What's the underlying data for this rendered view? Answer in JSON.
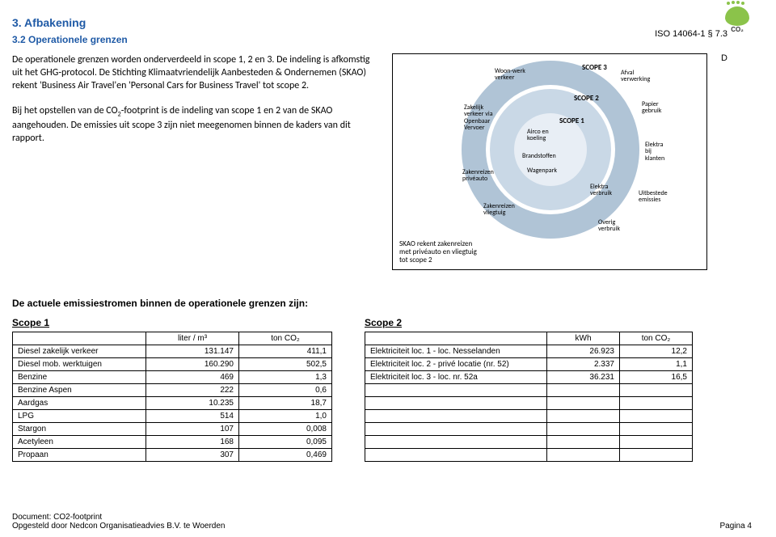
{
  "logo_text": "CO₂",
  "heading": "3. Afbakening",
  "subheading": "3.2 Operationele grenzen",
  "iso_ref": "ISO 14064-1 § 7.3",
  "d_mark": "D",
  "para1": "De operationele grenzen worden onderverdeeld in scope 1, 2 en 3. De indeling is afkomstig uit het GHG-protocol. De Stichting Klimaatvriendelijk Aanbesteden & Ondernemen (SKAO) rekent 'Business Air Travel'en 'Personal Cars for Business Travel' tot scope 2.",
  "para2_a": "Bij het opstellen van de CO",
  "para2_b": "-footprint is de indeling van scope 1 en 2 van de SKAO aangehouden. De emissies uit scope 3 zijn niet meegenomen binnen de kaders van dit rapport.",
  "diagram": {
    "scope3": "SCOPE 3",
    "scope2": "SCOPE 2",
    "scope1": "SCOPE 1",
    "labels": {
      "woon": "Woon-werk\nverkeer",
      "afval": "Afval\nverwerking",
      "zakelijk": "Zakelijk\nverkeer via\nOpenbaar\nVervoer",
      "papier": "Papier\ngebruik",
      "airco": "Airco en\nkoeling",
      "brand": "Brandstoffen",
      "wagen": "Wagenpark",
      "elektra_k": "Elektra\nbij\nklanten",
      "zaken_p": "Zakenreizen\nprivéauto",
      "elektra_v": "Elektra\nverbruik",
      "zaken_v": "Zakenreizen\nvliegtuig",
      "uitbest": "Uitbestede\nemissies",
      "overig": "Overig\nverbruik"
    },
    "note": "SKAO rekent zakenreizen\nmet privéauto en vliegtuig\ntot scope 2"
  },
  "tables_heading": "De actuele emissiestromen binnen de operationele grenzen zijn:",
  "scope1": {
    "title": "Scope 1",
    "col1": "liter / m³",
    "col2": "ton CO₂",
    "rows": [
      [
        "Diesel zakelijk verkeer",
        "131.147",
        "411,1"
      ],
      [
        "Diesel mob. werktuigen",
        "160.290",
        "502,5"
      ],
      [
        "Benzine",
        "469",
        "1,3"
      ],
      [
        "Benzine Aspen",
        "222",
        "0,6"
      ],
      [
        "Aardgas",
        "10.235",
        "18,7"
      ],
      [
        "LPG",
        "514",
        "1,0"
      ],
      [
        "Stargon",
        "107",
        "0,008"
      ],
      [
        "Acetyleen",
        "168",
        "0,095"
      ],
      [
        "Propaan",
        "307",
        "0,469"
      ]
    ]
  },
  "scope2": {
    "title": "Scope 2",
    "col1": "kWh",
    "col2": "ton CO₂",
    "rows": [
      [
        "Elektriciteit loc. 1 - loc. Nesselanden",
        "26.923",
        "12,2"
      ],
      [
        "Elektriciteit loc. 2 - privé locatie (nr. 52)",
        "2.337",
        "1,1"
      ],
      [
        "Elektriciteit loc. 3 - loc. nr. 52a",
        "36.231",
        "16,5"
      ],
      [
        "",
        "",
        ""
      ],
      [
        "",
        "",
        ""
      ],
      [
        "",
        "",
        ""
      ],
      [
        "",
        "",
        ""
      ],
      [
        "",
        "",
        ""
      ],
      [
        "",
        "",
        ""
      ]
    ]
  },
  "footer": {
    "l1": "Document: CO2-footprint",
    "l2": "Opgesteld door Nedcon Organisatieadvies B.V. te Woerden",
    "page": "Pagina 4"
  }
}
